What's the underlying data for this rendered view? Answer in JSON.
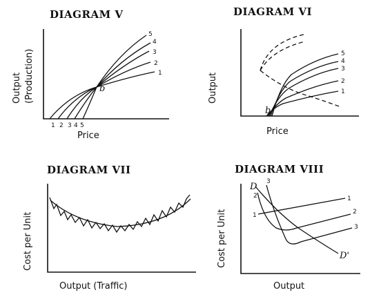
{
  "diagrams": {
    "v": {
      "title": "DIAGRAM  V",
      "ylabel_line1": "Output",
      "ylabel_line2": "(Production)",
      "xlabel": "Price",
      "curve_labels": [
        "1",
        "2",
        "3",
        "4",
        "5"
      ],
      "bottom_labels": [
        "1",
        "2",
        "3",
        "4",
        "5"
      ],
      "point_label": "b"
    },
    "vi": {
      "title": "DIAGRAM  VI",
      "ylabel": "Output",
      "xlabel": "Price",
      "curve_labels": [
        "1",
        "2",
        "3",
        "4",
        "5"
      ],
      "point_label": "b"
    },
    "vii": {
      "title": "DIAGRAM  VII",
      "ylabel": "Cost per Unit",
      "xlabel": "Output  (Traffic)"
    },
    "viii": {
      "title": "DIAGRAM  VIII",
      "ylabel": "Cost per Unit",
      "xlabel": "Output",
      "curve_labels": [
        "1",
        "2",
        "3"
      ],
      "left_label_1": "1",
      "top_label_2": "2",
      "top_label_3": "3",
      "demand_label": "D",
      "demand_label_end": "D'"
    }
  }
}
